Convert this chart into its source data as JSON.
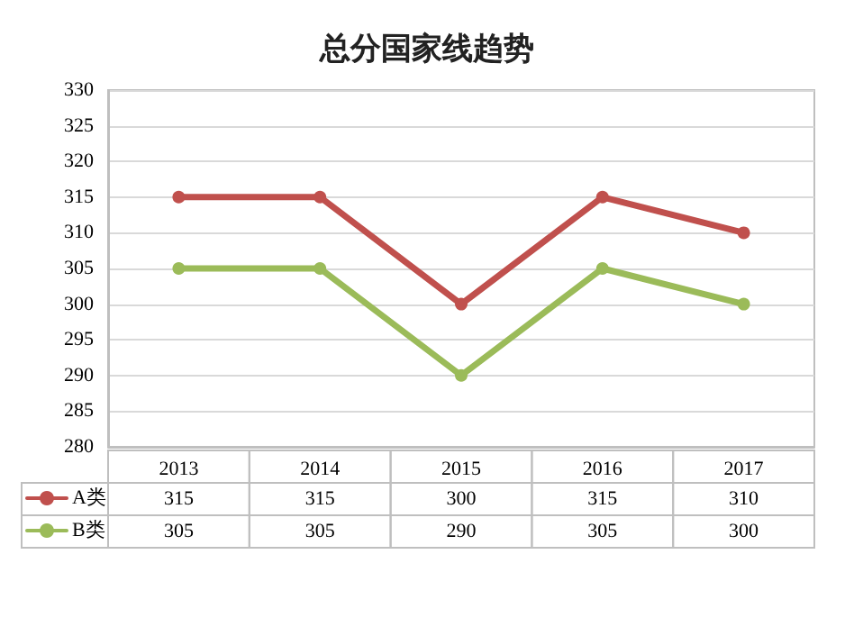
{
  "chart_data": {
    "type": "line",
    "title": "总分国家线趋势",
    "categories": [
      "2013",
      "2014",
      "2015",
      "2016",
      "2017"
    ],
    "series": [
      {
        "name": "A类",
        "color": "#c0504d",
        "values": [
          315,
          315,
          300,
          315,
          310
        ]
      },
      {
        "name": "B类",
        "color": "#9bbb59",
        "values": [
          305,
          305,
          290,
          305,
          300
        ]
      }
    ],
    "ylim": [
      280,
      330
    ],
    "yticks": [
      280,
      285,
      290,
      295,
      300,
      305,
      310,
      315,
      320,
      325,
      330
    ],
    "grid": "y",
    "marker": "circle",
    "line_style": "solid",
    "legend": "bottom left",
    "data_labels": true
  }
}
